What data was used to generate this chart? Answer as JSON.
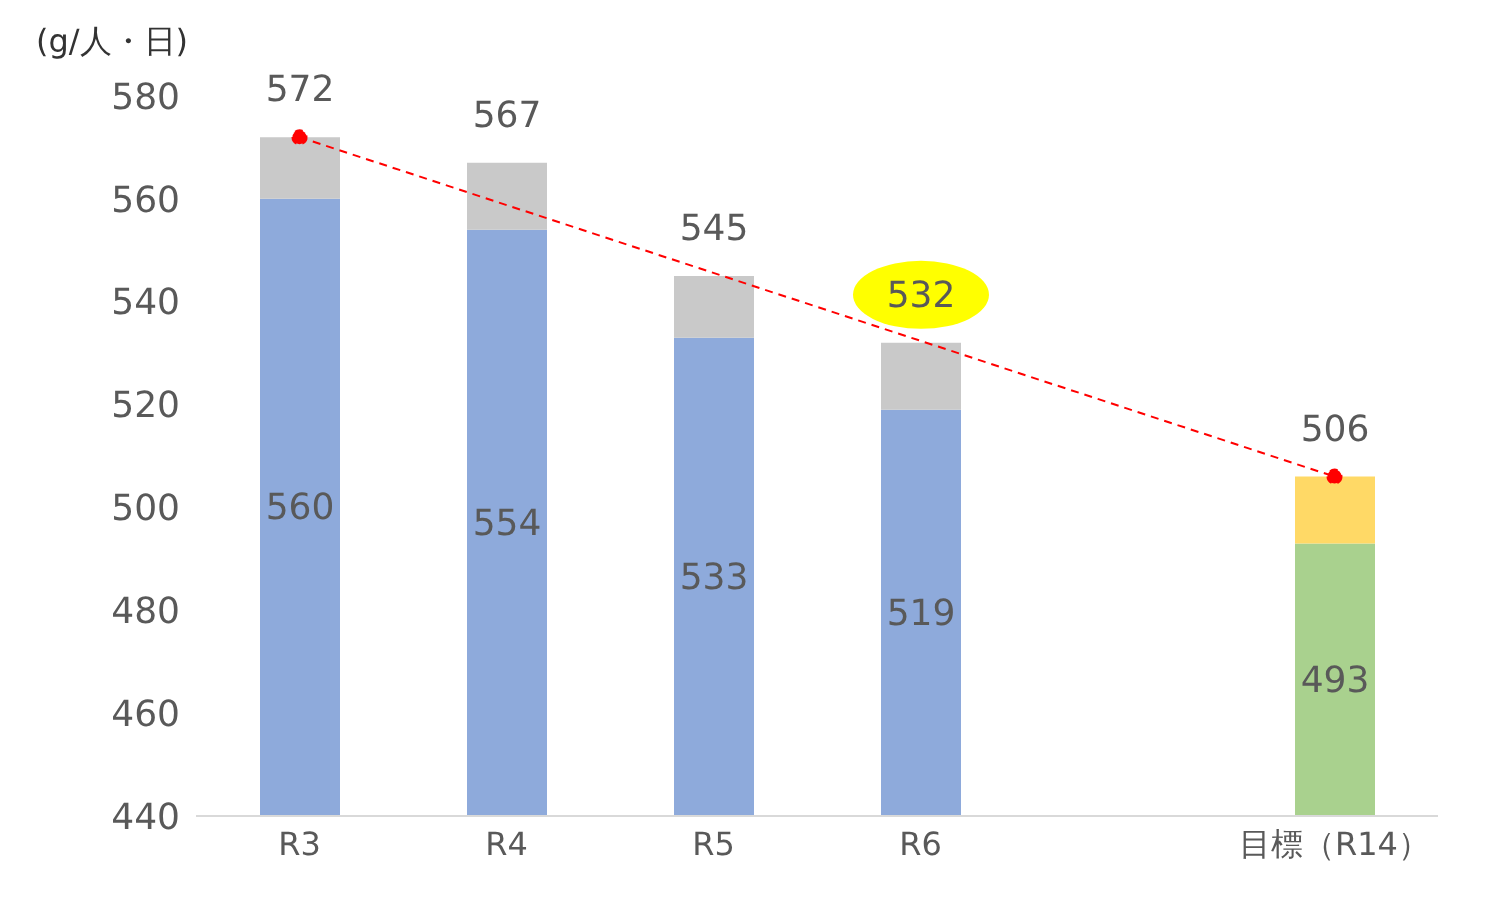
{
  "chart_data": {
    "type": "bar",
    "ylabel": "(g/人・日)",
    "categories": [
      "R3",
      "R4",
      "R5",
      "R6",
      null,
      "目標（R14）"
    ],
    "stacked": true,
    "ylim": [
      440,
      580
    ],
    "yticks": [
      440,
      460,
      480,
      500,
      520,
      540,
      560,
      580
    ],
    "grid": false,
    "legend": false,
    "series": [
      {
        "colors": [
          "#8eaadb",
          "#8eaadb",
          "#8eaadb",
          "#8eaadb",
          "#8eaadb",
          "#a9d18e"
        ],
        "values": [
          560,
          554,
          533,
          519,
          null,
          493
        ],
        "value_labels": [
          "560",
          "554",
          "533",
          "519",
          null,
          "493"
        ]
      },
      {
        "colors": [
          "#c9c9c9",
          "#c9c9c9",
          "#c9c9c9",
          "#c9c9c9",
          "#c9c9c9",
          "#ffd966"
        ],
        "base": [
          560,
          554,
          533,
          519,
          null,
          493
        ],
        "values": [
          12,
          13,
          12,
          13,
          null,
          13
        ],
        "value_labels": [
          "572",
          "567",
          "545",
          "532",
          null,
          "506"
        ]
      },
      {
        "type": "line",
        "color": "#ff0000",
        "line_style": "dashed",
        "marker": "circle",
        "values": [
          572,
          null,
          null,
          null,
          null,
          506
        ]
      }
    ]
  }
}
